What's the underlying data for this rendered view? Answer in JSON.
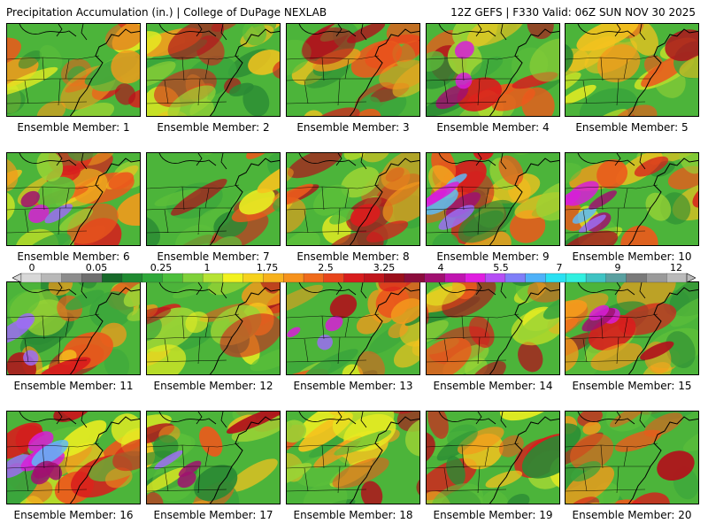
{
  "header": {
    "left": "Precipitation Accumulation (in.) | College of DuPage NEXLAB",
    "right": "12Z GEFS | F330 Valid: 06Z SUN NOV 30 2025"
  },
  "colorbar": {
    "labels": [
      "0",
      "0.05",
      "0.25",
      "1",
      "1.75",
      "2.5",
      "3.25",
      "4",
      "5.5",
      "7",
      "9",
      "12"
    ],
    "colors": [
      "#d8d8d8",
      "#b8b8b8",
      "#8c8c8c",
      "#6e6e6e",
      "#16692a",
      "#1f8a31",
      "#2fa83a",
      "#4cbf3c",
      "#7fd13a",
      "#b6e334",
      "#f2f21f",
      "#f6d21e",
      "#f7b21d",
      "#f6921c",
      "#ef6b1c",
      "#e8451c",
      "#d81d1d",
      "#c0161c",
      "#9b0f1b",
      "#8b0c3c",
      "#a01070",
      "#c015b0",
      "#e01ee0",
      "#b54ff5",
      "#7f7ff8",
      "#4fb1f8",
      "#2be0f2",
      "#31f0e0",
      "#3fc3c3",
      "#5aa0a0",
      "#7a7a7a",
      "#9a9a9a",
      "#bababa"
    ]
  },
  "members": [
    {
      "caption": "Ensemble Member: 1"
    },
    {
      "caption": "Ensemble Member: 2"
    },
    {
      "caption": "Ensemble Member: 3"
    },
    {
      "caption": "Ensemble Member: 4"
    },
    {
      "caption": "Ensemble Member: 5"
    },
    {
      "caption": "Ensemble Member: 6"
    },
    {
      "caption": "Ensemble Member: 7"
    },
    {
      "caption": "Ensemble Member: 8"
    },
    {
      "caption": "Ensemble Member: 9"
    },
    {
      "caption": "Ensemble Member: 10"
    },
    {
      "caption": "Ensemble Member: 11"
    },
    {
      "caption": "Ensemble Member: 12"
    },
    {
      "caption": "Ensemble Member: 13"
    },
    {
      "caption": "Ensemble Member: 14"
    },
    {
      "caption": "Ensemble Member: 15"
    },
    {
      "caption": "Ensemble Member: 16"
    },
    {
      "caption": "Ensemble Member: 17"
    },
    {
      "caption": "Ensemble Member: 18"
    },
    {
      "caption": "Ensemble Member: 19"
    },
    {
      "caption": "Ensemble Member: 20"
    }
  ]
}
